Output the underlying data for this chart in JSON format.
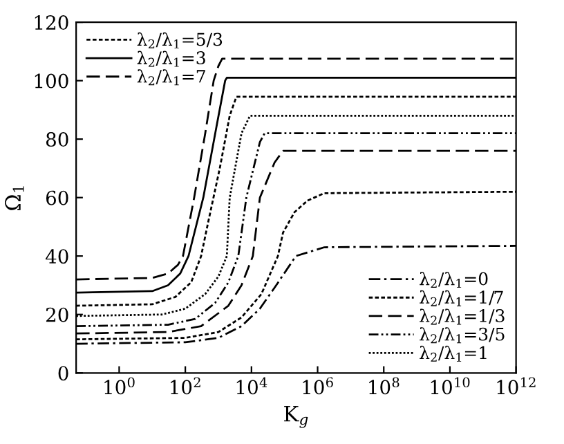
{
  "chart_data": {
    "type": "line",
    "xlabel": "K$_{g}$",
    "ylabel": "Ω$_{1}$",
    "log": "x",
    "grid": false,
    "legend": "top left",
    "xlim": [
      0.05,
      1000000000000.0
    ],
    "ylim": [
      0,
      120
    ],
    "xticks": [
      {
        "value": 1,
        "label": "10$^{0}$"
      },
      {
        "value": 100,
        "label": "10$^{2}$"
      },
      {
        "value": 10000.0,
        "label": "10$^{4}$"
      },
      {
        "value": 1000000.0,
        "label": "10$^{6}$"
      },
      {
        "value": 100000000.0,
        "label": "10$^{8}$"
      },
      {
        "value": 10000000000.0,
        "label": "10$^{10}$"
      },
      {
        "value": 1000000000000.0,
        "label": "10$^{12}$"
      }
    ],
    "yticks": [
      0,
      20,
      40,
      60,
      80,
      100,
      120
    ],
    "series": [
      {
        "name": "λ$_{2}$/λ$_{1}$=5/3",
        "color": "#000000",
        "line_style": "dotted",
        "x": [
          0.05,
          10,
          50,
          150,
          300,
          500,
          1100,
          2200,
          3500,
          1000000000000.0
        ],
        "values": [
          23,
          23.5,
          26,
          31,
          40,
          52,
          70,
          88,
          94.5,
          94.5
        ]
      },
      {
        "name": "λ$_{2}$/λ$_{1}$=3",
        "color": "#000000",
        "line_style": "solid",
        "x": [
          0.05,
          10,
          30,
          70,
          125,
          350,
          900,
          1600,
          1800,
          1000000000000.0
        ],
        "values": [
          27.5,
          28,
          30,
          34,
          40,
          60,
          85,
          100,
          101,
          101
        ]
      },
      {
        "name": "λ$_{2}$/λ$_{1}$=7",
        "color": "#000000",
        "line_style": "dashed",
        "x": [
          0.05,
          10,
          30,
          60,
          85,
          185,
          400,
          720,
          1000,
          1300,
          1000000000000.0
        ],
        "values": [
          32,
          32.5,
          34,
          37,
          40,
          60,
          82,
          100,
          105,
          107.5,
          107.5
        ]
      },
      {
        "name": "λ$_{2}$/λ$_{1}$=0",
        "color": "#000000",
        "line_style": "dashdot",
        "x": [
          0.05,
          100,
          1000,
          5000,
          18000,
          56000,
          220000,
          1600000,
          1000000000000.0
        ],
        "values": [
          10,
          10.5,
          12,
          16,
          22,
          30,
          40,
          43,
          43.5
        ]
      },
      {
        "name": "λ$_{2}$/λ$_{1}$=1/7",
        "color": "#000000",
        "line_style": "dotted",
        "x": [
          0.05,
          100,
          1000,
          5000,
          20000,
          63000,
          90000,
          200000,
          500000,
          1600000,
          1000000000000.0
        ],
        "values": [
          11.5,
          12,
          14,
          19,
          27,
          40,
          48,
          55,
          59,
          61.5,
          62
        ]
      },
      {
        "name": "λ$_{2}$/λ$_{1}$=1/3",
        "color": "#000000",
        "line_style": "dashed",
        "x": [
          0.05,
          30,
          300,
          2000,
          5000,
          11000,
          18000,
          50000,
          90000,
          1000000000000.0
        ],
        "values": [
          13.5,
          14,
          16,
          23,
          30,
          40,
          60,
          72,
          76,
          76
        ]
      },
      {
        "name": "λ$_{2}$/λ$_{1}$=3/5",
        "color": "#000000",
        "line_style": "dashdotdot",
        "x": [
          0.05,
          30,
          200,
          800,
          2000,
          4000,
          7000,
          18000,
          25000,
          1000000000000.0
        ],
        "values": [
          16,
          16.5,
          18.5,
          24,
          31,
          40,
          60,
          79,
          82,
          82
        ]
      },
      {
        "name": "λ$_{2}$/λ$_{1}$=1",
        "color": "#000000",
        "line_style": "fine",
        "x": [
          0.05,
          20,
          100,
          400,
          1000,
          1800,
          2200,
          5000,
          9000,
          1000000000000.0
        ],
        "values": [
          19.5,
          20,
          22,
          27,
          33,
          40,
          60,
          82,
          88,
          88
        ]
      }
    ]
  }
}
